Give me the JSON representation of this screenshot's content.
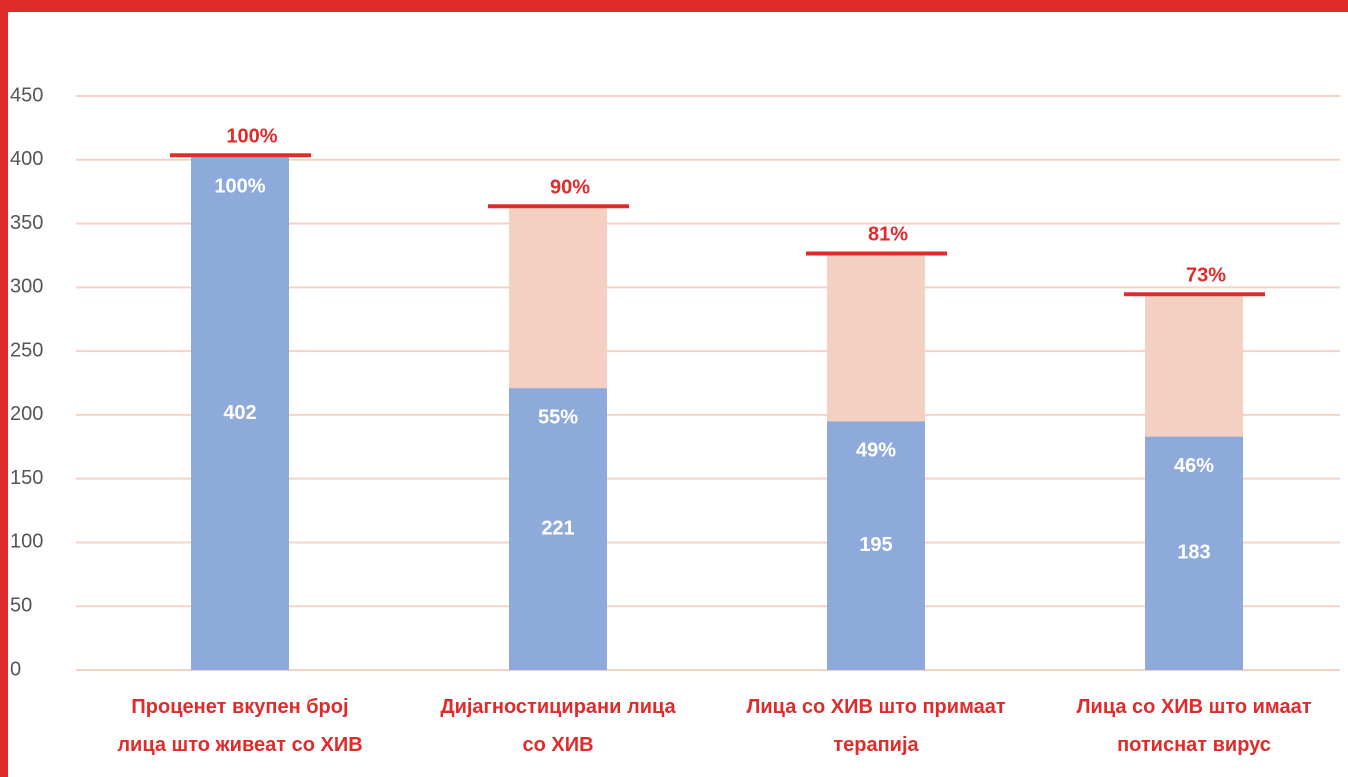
{
  "chart_data": {
    "type": "bar",
    "stacked": true,
    "categories": [
      "Проценет вкупен број\nлица што живеат со ХИВ",
      "Дијагностицирани лица\nсо ХИВ",
      "Лица со ХИВ што примаат\nтерапија",
      "Лица со ХИВ што имаат\nпотиснат вирус"
    ],
    "series": [
      {
        "color": "#8eaadb",
        "values": [
          402,
          221,
          195,
          183
        ],
        "value_labels": [
          "402",
          "221",
          "195",
          "183"
        ],
        "share_labels": [
          "100%",
          "55%",
          "49%",
          "46%"
        ]
      },
      {
        "color": "#f4d0c2",
        "values": [
          0,
          141,
          130,
          110
        ]
      }
    ],
    "target_labels": [
      "100%",
      "90%",
      "81%",
      "73%"
    ],
    "target_color": "#e02b2b",
    "ylim": [
      0,
      450
    ],
    "yticks": [
      0,
      50,
      100,
      150,
      200,
      250,
      300,
      350,
      400,
      450
    ],
    "grid": true
  }
}
